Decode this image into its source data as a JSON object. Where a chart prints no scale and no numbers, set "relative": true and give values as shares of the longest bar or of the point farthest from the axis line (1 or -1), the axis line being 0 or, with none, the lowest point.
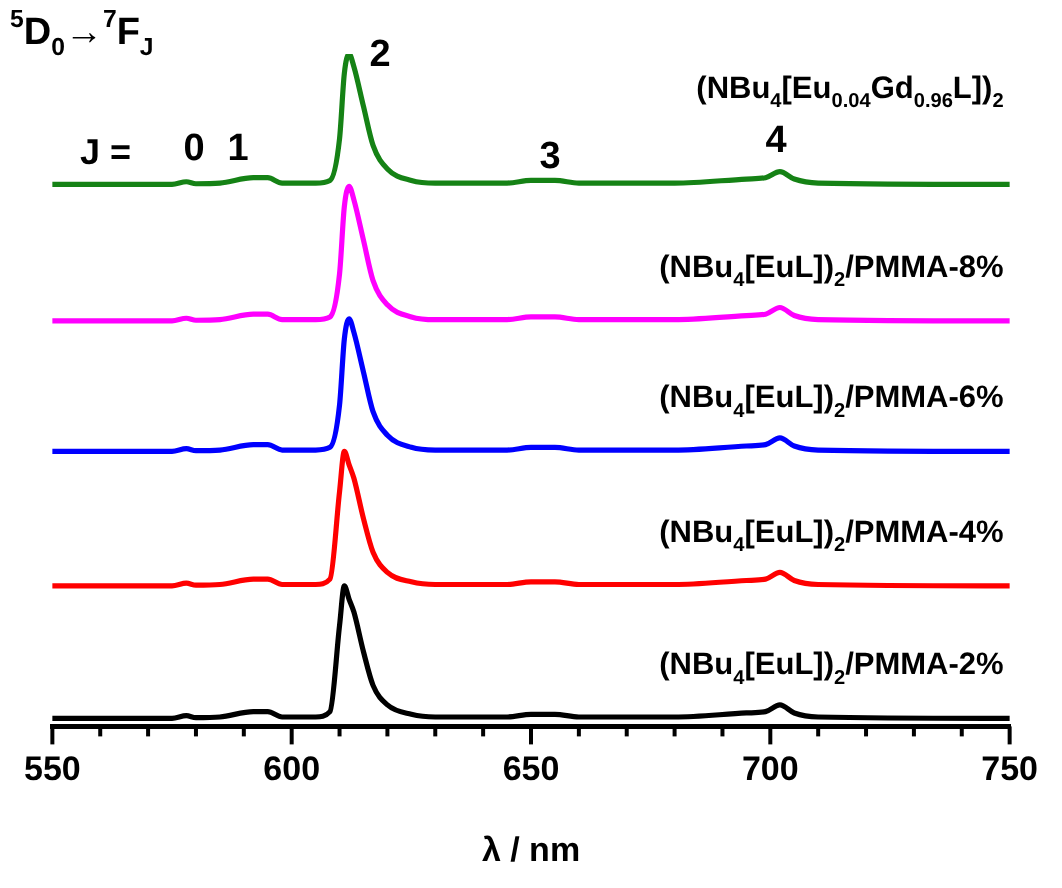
{
  "chart_data": {
    "type": "line",
    "relative": true,
    "xlabel": "λ / nm",
    "xlim": [
      550,
      750
    ],
    "xticks": [
      550,
      {
        "value": 560,
        "label": null
      },
      {
        "value": 570,
        "label": null
      },
      {
        "value": 580,
        "label": null
      },
      {
        "value": 590,
        "label": null
      },
      600,
      {
        "value": 610,
        "label": null
      },
      {
        "value": 620,
        "label": null
      },
      {
        "value": 630,
        "label": null
      },
      {
        "value": 640,
        "label": null
      },
      650,
      {
        "value": 660,
        "label": null
      },
      {
        "value": 670,
        "label": null
      },
      {
        "value": 680,
        "label": null
      },
      {
        "value": 690,
        "label": null
      },
      700,
      {
        "value": 710,
        "label": null
      },
      {
        "value": 720,
        "label": null
      },
      {
        "value": 730,
        "label": null
      },
      {
        "value": 740,
        "label": null
      },
      750
    ],
    "x": [
      550,
      575,
      578,
      580,
      585,
      592,
      595,
      598,
      605,
      608,
      610,
      611,
      612,
      613,
      615,
      617,
      620,
      625,
      630,
      645,
      650,
      655,
      660,
      680,
      695,
      699,
      702,
      705,
      710,
      750
    ],
    "grid": false,
    "legend": false,
    "marker": "none",
    "line_style": "solid",
    "series": [
      {
        "name": "(NBu$_{4}$[EuL])$_{2}$/PMMA-2%",
        "color": "#000000",
        "values": [
          0.012,
          0.012,
          0.016,
          0.013,
          0.014,
          0.022,
          0.022,
          0.014,
          0.014,
          0.022,
          0.15,
          0.209,
          0.189,
          0.17,
          0.111,
          0.061,
          0.032,
          0.018,
          0.014,
          0.014,
          0.018,
          0.018,
          0.014,
          0.014,
          0.02,
          0.022,
          0.032,
          0.02,
          0.014,
          0.012
        ]
      },
      {
        "name": "(NBu$_{4}$[EuL])$_{2}$/PMMA-4%",
        "color": "#ff0000",
        "values": [
          0.209,
          0.209,
          0.213,
          0.21,
          0.211,
          0.219,
          0.219,
          0.211,
          0.211,
          0.219,
          0.349,
          0.409,
          0.389,
          0.369,
          0.309,
          0.259,
          0.229,
          0.215,
          0.211,
          0.211,
          0.215,
          0.215,
          0.211,
          0.211,
          0.217,
          0.219,
          0.229,
          0.217,
          0.211,
          0.209
        ]
      },
      {
        "name": "(NBu$_{4}$[EuL])$_{2}$/PMMA-6%",
        "color": "#0000ff",
        "values": [
          0.409,
          0.409,
          0.413,
          0.41,
          0.411,
          0.419,
          0.419,
          0.411,
          0.411,
          0.415,
          0.478,
          0.576,
          0.606,
          0.586,
          0.527,
          0.468,
          0.433,
          0.415,
          0.411,
          0.411,
          0.415,
          0.415,
          0.411,
          0.411,
          0.417,
          0.419,
          0.429,
          0.417,
          0.411,
          0.409
        ]
      },
      {
        "name": "(NBu$_{4}$[EuL])$_{2}$/PMMA-8%",
        "color": "#ff00ff",
        "values": [
          0.603,
          0.603,
          0.607,
          0.604,
          0.605,
          0.613,
          0.613,
          0.605,
          0.605,
          0.609,
          0.673,
          0.773,
          0.803,
          0.783,
          0.723,
          0.663,
          0.627,
          0.609,
          0.605,
          0.605,
          0.609,
          0.609,
          0.605,
          0.605,
          0.611,
          0.613,
          0.623,
          0.611,
          0.605,
          0.603
        ]
      },
      {
        "name": "(NBu$_{4}$[Eu$_{0.04}$Gd$_{0.96}$L])$_{2}$",
        "color": "#158215",
        "values": [
          0.806,
          0.806,
          0.81,
          0.807,
          0.808,
          0.816,
          0.816,
          0.808,
          0.808,
          0.812,
          0.874,
          0.971,
          1,
          0.981,
          0.922,
          0.864,
          0.829,
          0.812,
          0.808,
          0.808,
          0.812,
          0.812,
          0.808,
          0.808,
          0.814,
          0.816,
          0.825,
          0.814,
          0.808,
          0.806
        ]
      }
    ],
    "annotations": [
      "$^{5}$D$_{0}$→$^{7}$F$_{J}$",
      "J =",
      "0",
      "1",
      "2",
      "3",
      "4"
    ]
  }
}
